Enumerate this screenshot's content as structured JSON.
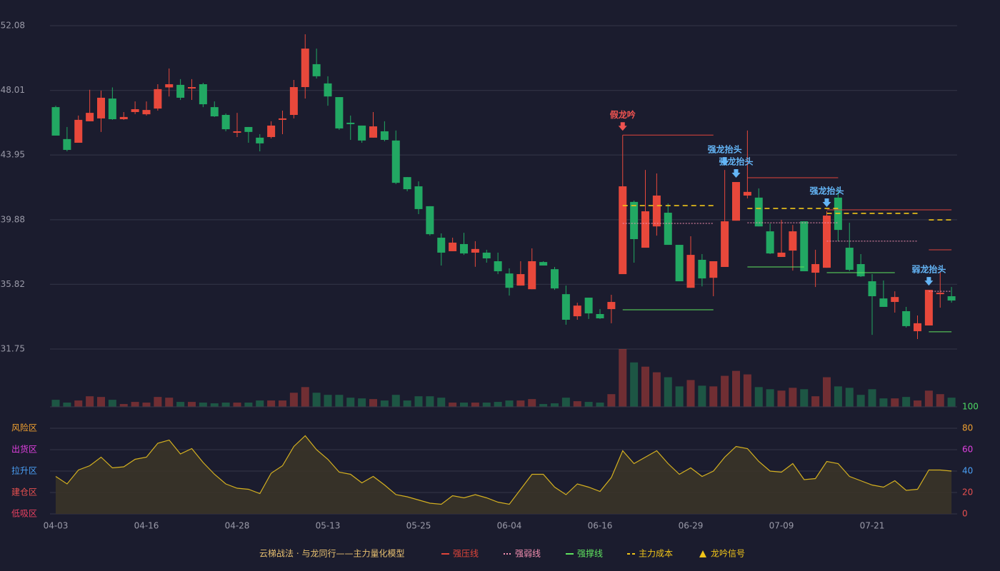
{
  "chart_data": [
    {
      "type": "candlestick",
      "categories": [
        "04-03",
        null,
        null,
        null,
        null,
        null,
        null,
        null,
        "04-16",
        null,
        null,
        null,
        null,
        null,
        null,
        null,
        "04-28",
        null,
        null,
        null,
        null,
        null,
        null,
        null,
        "05-13",
        null,
        null,
        null,
        null,
        null,
        null,
        null,
        "05-25",
        null,
        null,
        null,
        null,
        null,
        null,
        null,
        "06-04",
        null,
        null,
        null,
        null,
        null,
        null,
        null,
        "06-16",
        null,
        null,
        null,
        null,
        null,
        null,
        null,
        "06-29",
        null,
        null,
        null,
        null,
        null,
        null,
        null,
        "07-09",
        null,
        null,
        null,
        null,
        null,
        null,
        null,
        "07-21",
        null,
        null,
        null,
        null,
        null,
        null,
        null
      ],
      "open": [
        46.96,
        44.95,
        44.72,
        46.07,
        46.25,
        47.5,
        46.2,
        46.65,
        46.51,
        46.87,
        48.2,
        48.36,
        48.13,
        48.4,
        46.96,
        46.47,
        45.35,
        45.71,
        45.04,
        45.08,
        46.16,
        46.47,
        48.22,
        49.66,
        48.45,
        47.59,
        45.98,
        45.8,
        45.04,
        45.44,
        44.86,
        42.56,
        41.98,
        40.73,
        38.75,
        37.9,
        38.35,
        37.81,
        37.81,
        37.27,
        36.5,
        35.74,
        35.51,
        37.22,
        36.77,
        35.2,
        33.81,
        34.98,
        33.95,
        34.26,
        36.46,
        41.0,
        38.12,
        39.46,
        40.32,
        38.3,
        35.6,
        37.36,
        36.23,
        36.91,
        39.82,
        41.4,
        41.27,
        39.15,
        37.54,
        37.94,
        39.78,
        36.55,
        36.86,
        41.27,
        38.12,
        37.09,
        36.01,
        34.93,
        34.71,
        34.13,
        32.87,
        33.23,
        35.2,
        35.07
      ],
      "high": [
        47.05,
        45.71,
        46.43,
        48.05,
        48.0,
        48.2,
        46.65,
        47.32,
        47.32,
        48.4,
        49.39,
        48.72,
        48.72,
        48.49,
        47.32,
        46.56,
        46.6,
        45.71,
        45.26,
        46.07,
        46.74,
        48.67,
        51.54,
        50.64,
        48.9,
        47.59,
        46.43,
        45.8,
        46.65,
        46.07,
        45.49,
        42.56,
        42.29,
        40.73,
        39.02,
        38.75,
        39.06,
        38.53,
        37.99,
        37.81,
        36.82,
        37.27,
        38.08,
        37.27,
        36.91,
        35.74,
        34.66,
        34.98,
        34.26,
        35.16,
        45.2,
        41.08,
        43.01,
        42.79,
        40.9,
        38.3,
        38.84,
        37.72,
        37.27,
        43.01,
        42.25,
        45.49,
        41.85,
        39.64,
        39.87,
        39.55,
        39.78,
        37.99,
        40.41,
        41.85,
        39.69,
        37.72,
        36.46,
        36.06,
        35.38,
        34.4,
        33.86,
        35.47,
        36.64,
        35.65
      ],
      "low": [
        45.17,
        44.18,
        44.72,
        46.07,
        45.4,
        46.16,
        46.16,
        46.52,
        46.43,
        46.74,
        47.63,
        47.41,
        47.41,
        46.96,
        46.34,
        45.44,
        45.08,
        44.72,
        44.18,
        44.99,
        45.26,
        46.25,
        47.5,
        48.76,
        47.05,
        45.53,
        44.9,
        44.72,
        45.04,
        44.81,
        42.12,
        41.67,
        40.23,
        38.88,
        37.0,
        37.9,
        37.67,
        36.92,
        37.18,
        36.46,
        35.11,
        35.74,
        35.51,
        37.0,
        35.47,
        33.28,
        33.59,
        33.64,
        33.64,
        33.37,
        36.46,
        37.18,
        38.12,
        38.88,
        38.3,
        36.01,
        35.6,
        35.69,
        35.07,
        36.91,
        39.82,
        41.22,
        39.46,
        37.72,
        37.54,
        36.68,
        36.64,
        35.65,
        36.86,
        38.53,
        36.64,
        36.28,
        32.64,
        34.4,
        34.04,
        33.1,
        32.38,
        33.23,
        34.35,
        34.67
      ],
      "close": [
        45.17,
        44.27,
        46.16,
        46.6,
        47.55,
        46.2,
        46.34,
        46.83,
        46.78,
        48.09,
        48.4,
        47.55,
        48.22,
        47.14,
        46.38,
        45.57,
        45.44,
        45.4,
        44.68,
        45.8,
        46.25,
        48.22,
        50.64,
        48.9,
        47.63,
        45.62,
        45.89,
        44.86,
        45.75,
        44.9,
        42.2,
        41.8,
        40.55,
        38.97,
        37.81,
        38.44,
        37.76,
        38.04,
        37.45,
        36.64,
        35.6,
        36.46,
        37.27,
        37.0,
        35.56,
        33.59,
        34.48,
        33.99,
        33.68,
        34.71,
        41.98,
        38.66,
        40.41,
        41.4,
        38.3,
        36.01,
        37.67,
        36.19,
        37.27,
        39.78,
        42.25,
        41.63,
        39.46,
        37.76,
        37.81,
        39.15,
        36.64,
        37.09,
        40.14,
        39.24,
        36.73,
        36.32,
        35.07,
        34.4,
        35.02,
        33.19,
        33.37,
        35.47,
        35.29,
        34.8
      ],
      "up_color": "#e8483b",
      "down_color": "#22a863",
      "ylim": [
        31.75,
        52.08
      ],
      "yticks": [
        52.08,
        48.01,
        43.95,
        39.88,
        35.82,
        31.75
      ],
      "grid": true,
      "levels": [
        {
          "name": "强压线",
          "color": "#e0453a",
          "style": "solid",
          "segments": [
            {
              "span": [
                50,
                58
              ],
              "value": 45.2
            },
            {
              "span": [
                61,
                69
              ],
              "value": 42.52
            },
            {
              "span": [
                68,
                79
              ],
              "value": 40.5
            },
            {
              "span": [
                77,
                79
              ],
              "value": 37.99
            }
          ]
        },
        {
          "name": "强弱线",
          "color": "#f48fb1",
          "style": "dotted",
          "segments": [
            {
              "span": [
                50,
                58
              ],
              "value": 39.65
            },
            {
              "span": [
                61,
                69
              ],
              "value": 39.69
            },
            {
              "span": [
                68,
                76
              ],
              "value": 38.53
            },
            {
              "span": [
                77,
                79
              ],
              "value": 35.38
            }
          ]
        },
        {
          "name": "强撑线",
          "color": "#5fe35f",
          "style": "solid",
          "segments": [
            {
              "span": [
                50,
                58
              ],
              "value": 34.22
            },
            {
              "span": [
                61,
                66
              ],
              "value": 36.91
            },
            {
              "span": [
                68,
                74
              ],
              "value": 36.55
            },
            {
              "span": [
                77,
                79
              ],
              "value": 32.83
            }
          ]
        },
        {
          "name": "主力成本",
          "color": "#f0c419",
          "style": "dashed",
          "segments": [
            {
              "span": [
                50,
                58
              ],
              "value": 40.77
            },
            {
              "span": [
                61,
                69
              ],
              "value": 40.59
            },
            {
              "span": [
                68,
                76
              ],
              "value": 40.28
            },
            {
              "span": [
                77,
                79
              ],
              "value": 39.87
            }
          ]
        }
      ],
      "signals": [
        {
          "at": 50,
          "label": "假龙吟",
          "color": "#ef5350"
        },
        {
          "at": 59,
          "label": "强龙抬头",
          "color": "#64b5f6"
        },
        {
          "at": 60,
          "label": "强龙抬头",
          "color": "#64b5f6"
        },
        {
          "at": 68,
          "label": "强龙抬头",
          "color": "#64b5f6"
        },
        {
          "at": 77,
          "label": "弱龙抬头",
          "color": "#64b5f6"
        }
      ]
    },
    {
      "type": "bar",
      "values": [
        10,
        6,
        9,
        15,
        14,
        10,
        4,
        7,
        6,
        14,
        13,
        7,
        7,
        6,
        5,
        6,
        6,
        6,
        9,
        9,
        9,
        20,
        28,
        20,
        17,
        17,
        13,
        12,
        11,
        9,
        17,
        9,
        15,
        15,
        13,
        6,
        6,
        6,
        6,
        7,
        9,
        9,
        11,
        4,
        5,
        13,
        8,
        7,
        6,
        18,
        82,
        63,
        57,
        49,
        42,
        29,
        38,
        30,
        29,
        44,
        51,
        46,
        28,
        25,
        23,
        27,
        25,
        15,
        42,
        29,
        27,
        17,
        25,
        12,
        12,
        14,
        9,
        23,
        18,
        13
      ]
    },
    {
      "type": "area",
      "color": "#d4b020",
      "fill": "#3a3428",
      "values": [
        35,
        28,
        41,
        45,
        53,
        43,
        44,
        51,
        53,
        66,
        69,
        56,
        61,
        48,
        37,
        28,
        24,
        23,
        19,
        38,
        45,
        63,
        73,
        60,
        51,
        39,
        37,
        29,
        35,
        27,
        18,
        16,
        13,
        10,
        9,
        17,
        15,
        18,
        15,
        11,
        9,
        23,
        37,
        37,
        25,
        18,
        28,
        25,
        21,
        34,
        59,
        47,
        53,
        59,
        47,
        37,
        43,
        35,
        40,
        53,
        63,
        61,
        49,
        40,
        39,
        47,
        32,
        33,
        49,
        47,
        35,
        31,
        27,
        25,
        31,
        22,
        23,
        41,
        41,
        40
      ],
      "ylim": [
        0,
        100
      ],
      "yticks": [
        0,
        20,
        40,
        60,
        80,
        100
      ],
      "tick_colors": [
        "#e85050",
        "#e85050",
        "#4a9ff5",
        "#e040e0",
        "#f0a030",
        "#4cd964"
      ],
      "zones": [
        {
          "label": "低吸区",
          "value": 0,
          "color": "#e84060"
        },
        {
          "label": "建仓区",
          "value": 20,
          "color": "#e85050"
        },
        {
          "label": "拉升区",
          "value": 40,
          "color": "#4a9ff5"
        },
        {
          "label": "出货区",
          "value": 60,
          "color": "#e040e0"
        },
        {
          "label": "风险区",
          "value": 80,
          "color": "#f0a030"
        }
      ]
    }
  ],
  "legend": {
    "title": "云梯战法 · 与龙同行——主力量化模型",
    "title_color": "#e8c070",
    "signal": "龙吟信号",
    "signal_color": "#f0c419"
  }
}
